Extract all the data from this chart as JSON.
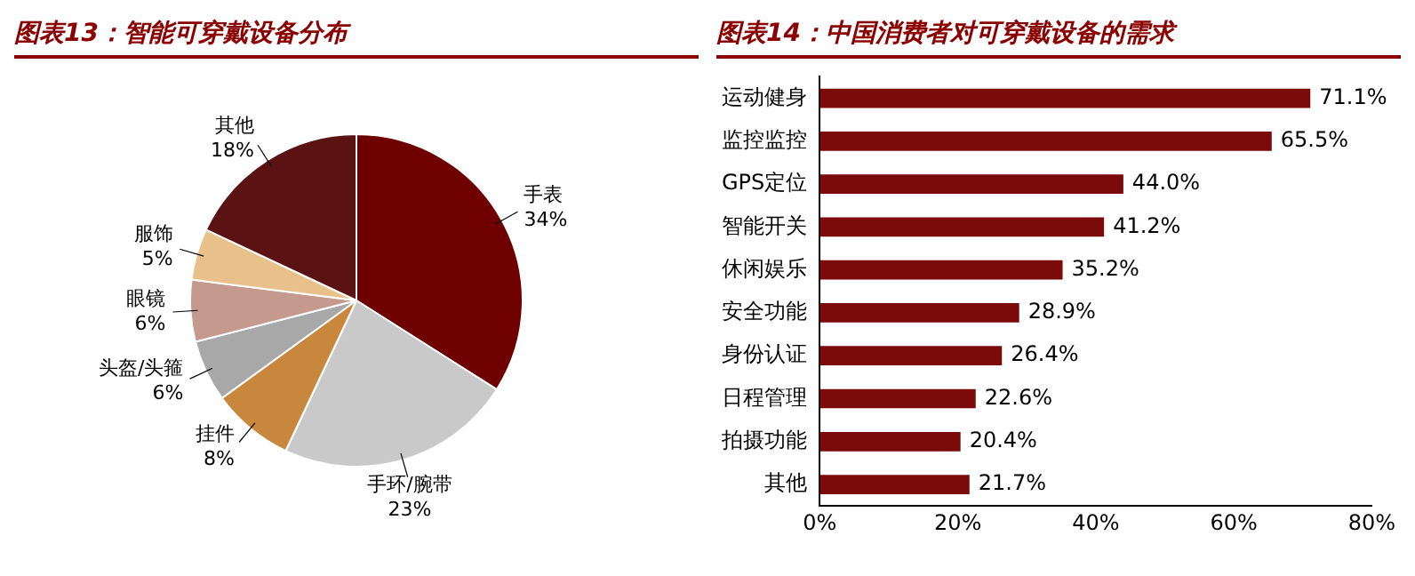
{
  "chart_data": [
    {
      "type": "pie",
      "title": "图表13：智能可穿戴设备分布",
      "categories": [
        "手表",
        "手环/腕带",
        "挂件",
        "头盔/头箍",
        "眼镜",
        "服饰",
        "其他"
      ],
      "values": [
        34,
        23,
        8,
        6,
        6,
        5,
        18
      ],
      "value_labels": [
        "34%",
        "23%",
        "8%",
        "6%",
        "6%",
        "5%",
        "18%"
      ],
      "colors": [
        "#6e0000",
        "#c9c9c9",
        "#c8873c",
        "#a8a8a8",
        "#c49a8e",
        "#e8c08a",
        "#5a1212"
      ]
    },
    {
      "type": "bar",
      "orientation": "horizontal",
      "title": "图表14：中国消费者对可穿戴设备的需求",
      "categories": [
        "运动健身",
        "监控监控",
        "GPS定位",
        "智能开关",
        "休闲娱乐",
        "安全功能",
        "身份认证",
        "日程管理",
        "拍摄功能",
        "其他"
      ],
      "values": [
        71.1,
        65.5,
        44.0,
        41.2,
        35.2,
        28.9,
        26.4,
        22.6,
        20.4,
        21.7
      ],
      "value_labels": [
        "71.1%",
        "65.5%",
        "44.0%",
        "41.2%",
        "35.2%",
        "28.9%",
        "26.4%",
        "22.6%",
        "20.4%",
        "21.7%"
      ],
      "color": "#7b0a0a",
      "xlim": [
        0,
        80
      ],
      "xticks": [
        {
          "value": 0,
          "label": "0%"
        },
        {
          "value": 20,
          "label": "20%"
        },
        {
          "value": 40,
          "label": "40%"
        },
        {
          "value": 60,
          "label": "60%"
        },
        {
          "value": 80,
          "label": "80%"
        }
      ],
      "grid": false
    }
  ]
}
